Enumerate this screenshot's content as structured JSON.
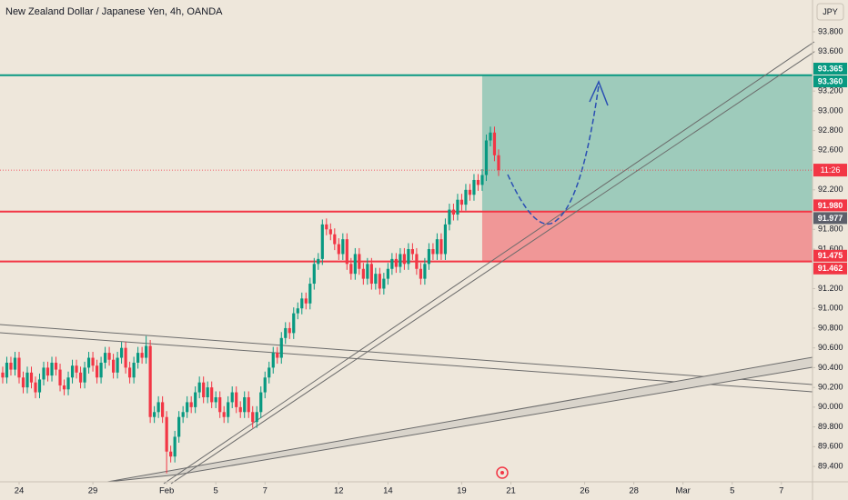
{
  "chart_data": {
    "type": "candlestick",
    "title": "New Zealand Dollar / Japanese Yen, 4h, OANDA",
    "currency": "JPY",
    "countdown": "11:26",
    "up_color": "#089981",
    "down_color": "#f23645",
    "grid": false,
    "xlim": [
      -0.66,
      197.6
    ],
    "xticks": [
      {
        "value": 4,
        "label": "24"
      },
      {
        "value": 22,
        "label": "29"
      },
      {
        "value": 40,
        "label": "Feb"
      },
      {
        "value": 52,
        "label": "5"
      },
      {
        "value": 64,
        "label": "7"
      },
      {
        "value": 82,
        "label": "12"
      },
      {
        "value": 94,
        "label": "14"
      },
      {
        "value": 112,
        "label": "19"
      },
      {
        "value": 124,
        "label": "21"
      },
      {
        "value": 142,
        "label": "26"
      },
      {
        "value": 154,
        "label": "28"
      },
      {
        "value": 166,
        "label": "Mar"
      },
      {
        "value": 178,
        "label": "5"
      },
      {
        "value": 190,
        "label": "7"
      }
    ],
    "ylim": [
      89.244,
      94.122
    ],
    "yticks": [
      {
        "value": 89.4,
        "label": "89.400"
      },
      {
        "value": 89.6,
        "label": "89.600"
      },
      {
        "value": 89.8,
        "label": "89.800"
      },
      {
        "value": 90.0,
        "label": "90.000"
      },
      {
        "value": 90.2,
        "label": "90.200"
      },
      {
        "value": 90.4,
        "label": "90.400"
      },
      {
        "value": 90.6,
        "label": "90.600"
      },
      {
        "value": 90.8,
        "label": "90.800"
      },
      {
        "value": 91.0,
        "label": "91.000"
      },
      {
        "value": 91.2,
        "label": "91.200"
      },
      {
        "value": 91.6,
        "label": "91.600"
      },
      {
        "value": 91.8,
        "label": "91.800"
      },
      {
        "value": 92.2,
        "label": "92.200"
      },
      {
        "value": 92.6,
        "label": "92.600"
      },
      {
        "value": 92.8,
        "label": "92.800"
      },
      {
        "value": 93.0,
        "label": "93.000"
      },
      {
        "value": 93.2,
        "label": "93.200"
      },
      {
        "value": 93.6,
        "label": "93.600"
      },
      {
        "value": 93.8,
        "label": "93.800"
      }
    ],
    "hlines": [
      {
        "value": 93.36,
        "color": "#089981"
      },
      {
        "value": 91.98,
        "color": "#f23645"
      },
      {
        "value": 91.475,
        "color": "#f23645"
      }
    ],
    "position": {
      "start": 117,
      "target": 93.36,
      "entry": 91.98,
      "stop": 91.475
    },
    "price_labels": [
      {
        "value": 93.365,
        "label": "93.365",
        "color": "#089981"
      },
      {
        "value": 93.36,
        "label": "93.360",
        "color": "#089981"
      },
      {
        "value": 91.98,
        "label": "91.980",
        "color": "#f23645"
      },
      {
        "value": 91.977,
        "label": "91.977",
        "color": "#5d606b"
      },
      {
        "value": 91.475,
        "label": "91.475",
        "color": "#f23645"
      },
      {
        "value": 91.462,
        "label": "91.462",
        "color": "#f23645"
      }
    ],
    "open": [
      90.35,
      90.3,
      90.45,
      90.38,
      90.5,
      90.3,
      90.2,
      90.35,
      90.25,
      90.15,
      90.28,
      90.4,
      90.32,
      90.45,
      90.38,
      90.22,
      90.18,
      90.3,
      90.42,
      90.35,
      90.25,
      90.4,
      90.5,
      90.42,
      90.3,
      90.45,
      90.55,
      90.48,
      90.35,
      90.5,
      90.6,
      90.4,
      90.3,
      90.45,
      90.55,
      90.5,
      90.62,
      89.9,
      89.95,
      90.05,
      89.9,
      89.55,
      89.5,
      89.7,
      89.9,
      89.95,
      90.05,
      90.0,
      90.15,
      90.25,
      90.1,
      90.2,
      90.05,
      90.1,
      89.95,
      89.9,
      90.05,
      90.15,
      90.0,
      89.95,
      90.1,
      89.95,
      89.85,
      89.95,
      90.15,
      90.3,
      90.4,
      90.55,
      90.5,
      90.7,
      90.8,
      90.75,
      90.95,
      91.0,
      91.1,
      91.05,
      91.25,
      91.45,
      91.5,
      91.85,
      91.8,
      91.75,
      91.65,
      91.55,
      91.7,
      91.45,
      91.35,
      91.55,
      91.4,
      91.3,
      91.45,
      91.25,
      91.35,
      91.2,
      91.3,
      91.4,
      91.5,
      91.42,
      91.55,
      91.45,
      91.6,
      91.55,
      91.4,
      91.3,
      91.45,
      91.6,
      91.55,
      91.7,
      91.55,
      91.85,
      92.0,
      91.95,
      92.1,
      92.05,
      92.2,
      92.15,
      92.3,
      92.25,
      92.35,
      92.7,
      92.78,
      92.55
    ],
    "high": [
      90.41,
      90.51,
      90.51,
      90.56,
      90.56,
      90.36,
      90.41,
      90.41,
      90.31,
      90.34,
      90.46,
      90.46,
      90.51,
      90.51,
      90.44,
      90.28,
      90.36,
      90.48,
      90.48,
      90.41,
      90.46,
      90.56,
      90.56,
      90.48,
      90.51,
      90.61,
      90.61,
      90.54,
      90.56,
      90.66,
      90.66,
      90.46,
      90.51,
      90.61,
      90.61,
      90.72,
      90.68,
      90.01,
      90.11,
      90.11,
      89.96,
      89.61,
      89.76,
      89.96,
      90.01,
      90.11,
      90.11,
      90.21,
      90.31,
      90.31,
      90.26,
      90.26,
      90.16,
      90.16,
      90.01,
      90.11,
      90.21,
      90.21,
      90.06,
      90.16,
      90.16,
      90.01,
      90.01,
      90.21,
      90.36,
      90.46,
      90.61,
      90.61,
      90.76,
      90.86,
      90.86,
      91.01,
      91.06,
      91.16,
      91.16,
      91.31,
      91.51,
      91.56,
      91.9,
      91.91,
      91.86,
      91.81,
      91.71,
      91.76,
      91.76,
      91.51,
      91.61,
      91.61,
      91.46,
      91.51,
      91.51,
      91.41,
      91.41,
      91.36,
      91.46,
      91.56,
      91.56,
      91.61,
      91.61,
      91.66,
      91.66,
      91.61,
      91.46,
      91.51,
      91.66,
      91.66,
      91.76,
      91.76,
      91.91,
      92.06,
      92.06,
      92.16,
      92.16,
      92.26,
      92.26,
      92.36,
      92.36,
      92.41,
      92.76,
      92.84,
      92.84,
      92.61
    ],
    "low": [
      90.24,
      90.24,
      90.32,
      90.32,
      90.24,
      90.14,
      90.14,
      90.19,
      90.09,
      90.09,
      90.22,
      90.26,
      90.26,
      90.32,
      90.16,
      90.12,
      90.12,
      90.24,
      90.29,
      90.19,
      90.19,
      90.34,
      90.36,
      90.24,
      90.24,
      90.39,
      90.42,
      90.29,
      90.29,
      90.44,
      90.34,
      90.24,
      90.24,
      90.39,
      90.44,
      90.44,
      89.84,
      89.84,
      89.89,
      89.84,
      89.33,
      89.44,
      89.44,
      89.64,
      89.84,
      89.89,
      89.94,
      89.94,
      90.09,
      90.04,
      90.04,
      89.99,
      89.99,
      89.89,
      89.84,
      89.84,
      89.99,
      89.94,
      89.89,
      89.89,
      89.89,
      89.79,
      89.79,
      89.89,
      90.09,
      90.24,
      90.34,
      90.44,
      90.44,
      90.64,
      90.69,
      90.69,
      90.89,
      90.94,
      90.99,
      90.99,
      91.19,
      91.39,
      91.44,
      91.74,
      91.69,
      91.59,
      91.49,
      91.49,
      91.39,
      91.29,
      91.29,
      91.34,
      91.24,
      91.24,
      91.19,
      91.19,
      91.14,
      91.14,
      91.24,
      91.34,
      91.36,
      91.36,
      91.39,
      91.39,
      91.49,
      91.34,
      91.24,
      91.24,
      91.39,
      91.49,
      91.49,
      91.49,
      91.49,
      91.79,
      91.89,
      91.89,
      91.99,
      91.99,
      92.09,
      92.09,
      92.19,
      92.19,
      92.29,
      92.64,
      92.49,
      92.34
    ],
    "close": [
      90.3,
      90.45,
      90.38,
      90.5,
      90.3,
      90.2,
      90.35,
      90.25,
      90.15,
      90.28,
      90.4,
      90.32,
      90.45,
      90.38,
      90.22,
      90.18,
      90.3,
      90.42,
      90.35,
      90.25,
      90.4,
      90.5,
      90.42,
      90.3,
      90.45,
      90.55,
      90.48,
      90.35,
      90.5,
      90.6,
      90.4,
      90.3,
      90.45,
      90.55,
      90.5,
      90.62,
      89.9,
      89.95,
      90.05,
      89.9,
      89.55,
      89.5,
      89.7,
      89.9,
      89.95,
      90.05,
      90.0,
      90.15,
      90.25,
      90.1,
      90.2,
      90.05,
      90.1,
      89.95,
      89.9,
      90.05,
      90.15,
      90.0,
      89.95,
      90.1,
      89.95,
      89.85,
      89.95,
      90.15,
      90.3,
      90.4,
      90.55,
      90.5,
      90.7,
      90.8,
      90.75,
      90.95,
      91.0,
      91.1,
      91.05,
      91.25,
      91.45,
      91.5,
      91.85,
      91.8,
      91.75,
      91.65,
      91.55,
      91.7,
      91.45,
      91.35,
      91.55,
      91.4,
      91.3,
      91.45,
      91.25,
      91.35,
      91.2,
      91.3,
      91.4,
      91.5,
      91.42,
      91.55,
      91.45,
      91.6,
      91.55,
      91.4,
      91.3,
      91.45,
      91.6,
      91.55,
      91.7,
      91.55,
      91.85,
      92.0,
      91.95,
      92.1,
      92.05,
      92.2,
      92.15,
      92.3,
      92.25,
      92.35,
      92.7,
      92.78,
      92.55,
      92.4
    ]
  }
}
